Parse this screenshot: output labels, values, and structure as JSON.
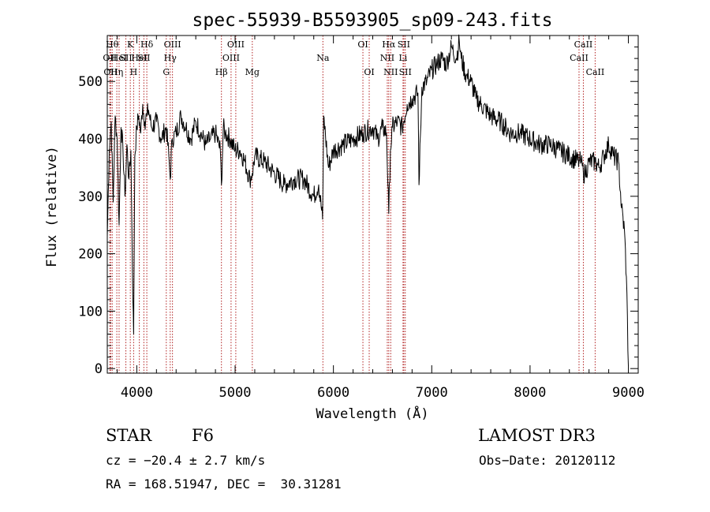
{
  "chart_data": {
    "type": "line",
    "title": "spec-55939-B5593905_sp09-243.fits",
    "xlabel": "Wavelength (Å)",
    "ylabel": "Flux (relative)",
    "xlim": [
      3700,
      9100
    ],
    "ylim": [
      -8,
      580
    ],
    "xticks": [
      4000,
      5000,
      6000,
      7000,
      8000,
      9000
    ],
    "yticks": [
      0,
      100,
      200,
      300,
      400,
      500
    ],
    "line_color": "#000000",
    "marker_color": "#b22222",
    "series": [
      {
        "name": "flux",
        "x": [
          3700,
          3720,
          3740,
          3760,
          3780,
          3800,
          3820,
          3840,
          3860,
          3880,
          3900,
          3920,
          3940,
          3960,
          3968,
          3980,
          4000,
          4020,
          4040,
          4060,
          4080,
          4100,
          4120,
          4150,
          4200,
          4250,
          4300,
          4330,
          4340,
          4360,
          4400,
          4450,
          4500,
          4550,
          4600,
          4650,
          4700,
          4750,
          4800,
          4850,
          4861,
          4880,
          4900,
          4950,
          5000,
          5050,
          5100,
          5150,
          5175,
          5200,
          5300,
          5400,
          5500,
          5600,
          5700,
          5800,
          5850,
          5890,
          5895,
          5900,
          5950,
          6000,
          6100,
          6200,
          6300,
          6400,
          6450,
          6500,
          6540,
          6563,
          6580,
          6600,
          6650,
          6700,
          6750,
          6800,
          6860,
          6870,
          6900,
          6950,
          7000,
          7050,
          7100,
          7150,
          7200,
          7250,
          7280,
          7300,
          7350,
          7400,
          7450,
          7500,
          7600,
          7700,
          7800,
          7900,
          8000,
          8100,
          8200,
          8300,
          8400,
          8498,
          8520,
          8542,
          8560,
          8600,
          8662,
          8700,
          8750,
          8800,
          8850,
          8900,
          8930,
          8960,
          8980,
          9000
        ],
        "y": [
          230,
          380,
          430,
          290,
          440,
          400,
          250,
          420,
          380,
          300,
          390,
          330,
          380,
          120,
          60,
          370,
          420,
          440,
          410,
          460,
          430,
          440,
          450,
          420,
          430,
          400,
          420,
          360,
          330,
          400,
          410,
          440,
          420,
          400,
          430,
          410,
          390,
          400,
          410,
          380,
          320,
          420,
          410,
          400,
          380,
          380,
          360,
          330,
          340,
          370,
          360,
          340,
          320,
          330,
          330,
          300,
          320,
          260,
          340,
          440,
          350,
          380,
          390,
          400,
          410,
          420,
          400,
          420,
          410,
          270,
          380,
          420,
          430,
          420,
          460,
          470,
          480,
          320,
          490,
          500,
          520,
          530,
          540,
          530,
          560,
          540,
          570,
          540,
          510,
          500,
          470,
          460,
          440,
          430,
          410,
          410,
          400,
          390,
          390,
          380,
          370,
          360,
          360,
          340,
          340,
          360,
          360,
          350,
          370,
          390,
          370,
          360,
          280,
          240,
          160,
          5
        ]
      }
    ],
    "lines": [
      {
        "wl": 3726,
        "label": "OII",
        "row": 2
      },
      {
        "wl": 3734,
        "label": "OII",
        "row": 3
      },
      {
        "wl": 3750,
        "label": "Hθ",
        "row": 1
      },
      {
        "wl": 3797,
        "label": "Hη",
        "row": 3
      },
      {
        "wl": 3820,
        "label": "HeI",
        "row": 2
      },
      {
        "wl": 3889,
        "label": "SII",
        "row": 2
      },
      {
        "wl": 3934,
        "label": "K",
        "row": 1
      },
      {
        "wl": 3968,
        "label": "H",
        "row": 3
      },
      {
        "wl": 4026,
        "label": "HeI",
        "row": 2
      },
      {
        "wl": 4072,
        "label": "SII",
        "row": 2
      },
      {
        "wl": 4102,
        "label": "Hδ",
        "row": 1
      },
      {
        "wl": 4300,
        "label": "G",
        "row": 3
      },
      {
        "wl": 4340,
        "label": "Hγ",
        "row": 2
      },
      {
        "wl": 4363,
        "label": "OIII",
        "row": 1
      },
      {
        "wl": 4861,
        "label": "Hβ",
        "row": 3
      },
      {
        "wl": 4959,
        "label": "OIII",
        "row": 2
      },
      {
        "wl": 5007,
        "label": "OIII",
        "row": 1
      },
      {
        "wl": 5175,
        "label": "Mg",
        "row": 3
      },
      {
        "wl": 5893,
        "label": "Na",
        "row": 2
      },
      {
        "wl": 6300,
        "label": "OI",
        "row": 1
      },
      {
        "wl": 6364,
        "label": "OI",
        "row": 3
      },
      {
        "wl": 6548,
        "label": "NII",
        "row": 2
      },
      {
        "wl": 6563,
        "label": "Hα",
        "row": 1
      },
      {
        "wl": 6583,
        "label": "NII",
        "row": 3
      },
      {
        "wl": 6708,
        "label": "Li",
        "row": 2
      },
      {
        "wl": 6716,
        "label": "SII",
        "row": 1
      },
      {
        "wl": 6731,
        "label": "SII",
        "row": 3
      },
      {
        "wl": 8498,
        "label": "CaII",
        "row": 2
      },
      {
        "wl": 8542,
        "label": "CaII",
        "row": 1
      },
      {
        "wl": 8662,
        "label": "CaII",
        "row": 3
      }
    ]
  },
  "info": {
    "class_label": "STAR",
    "subclass": "F6",
    "survey": "LAMOST DR3",
    "cz": "cz = −20.4 ± 2.7 km/s",
    "obs_date": "Obs−Date: 20120112",
    "coords": "RA = 168.51947, DEC =  30.31281"
  }
}
